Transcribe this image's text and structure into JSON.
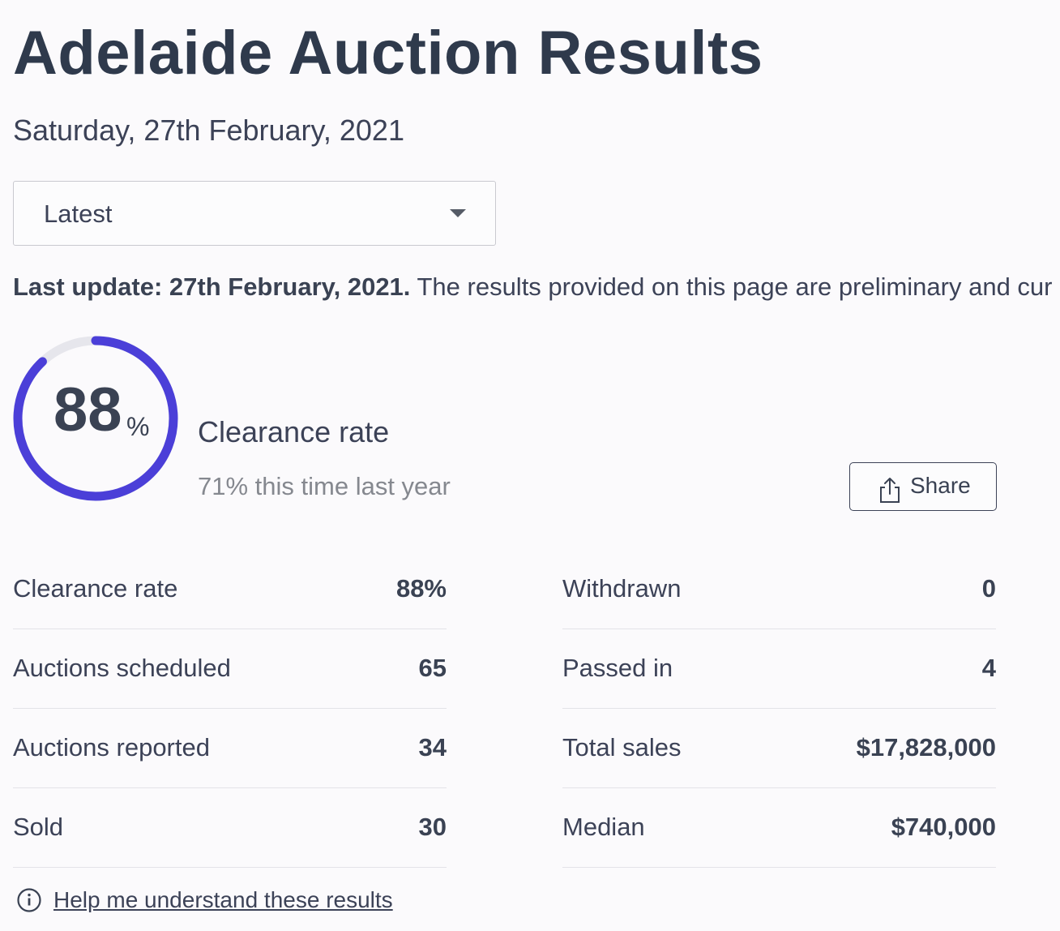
{
  "header": {
    "title": "Adelaide Auction Results",
    "date": "Saturday, 27th February, 2021"
  },
  "period_select": {
    "value": "Latest",
    "icon": "chevron-down-icon"
  },
  "update": {
    "bold": "Last update: 27th February, 2021.",
    "text": " The results provided on this page are preliminary and cur"
  },
  "clearance": {
    "gauge_value": 88,
    "gauge_suffix": "%",
    "label": "Clearance rate",
    "comparison": "71% this time last year",
    "accent_color": "#4b3fd8",
    "track_color": "#e6e6ec"
  },
  "share": {
    "label": "Share",
    "icon": "share-icon"
  },
  "stats": {
    "left": [
      {
        "label": "Clearance rate",
        "value": "88%"
      },
      {
        "label": "Auctions scheduled",
        "value": "65"
      },
      {
        "label": "Auctions reported",
        "value": "34"
      },
      {
        "label": "Sold",
        "value": "30"
      }
    ],
    "right": [
      {
        "label": "Withdrawn",
        "value": "0"
      },
      {
        "label": "Passed in",
        "value": "4"
      },
      {
        "label": "Total sales",
        "value": "$17,828,000"
      },
      {
        "label": "Median",
        "value": "$740,000"
      }
    ]
  },
  "help": {
    "label": "Help me understand these results",
    "icon": "info-icon"
  }
}
